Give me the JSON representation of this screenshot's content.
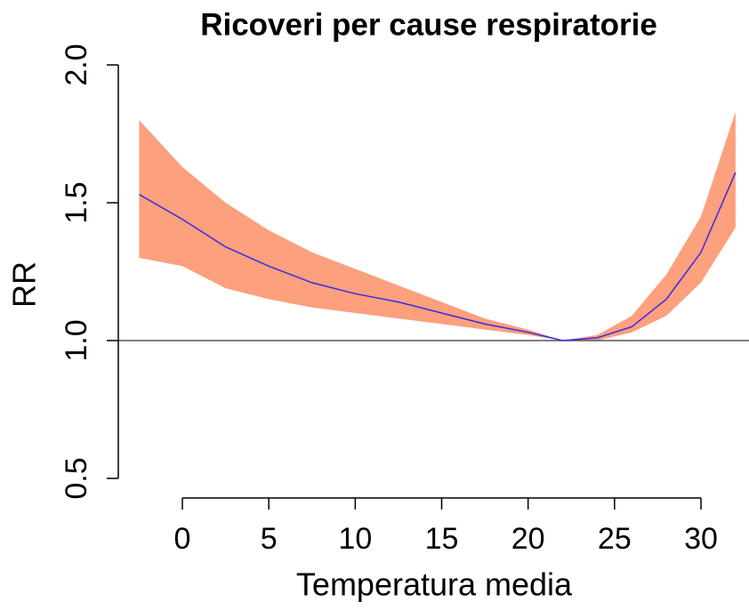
{
  "chart_data": {
    "type": "ribbon",
    "title": "Ricoveri per cause respiratorie",
    "x_label": "Temperatura media",
    "y_label": "RR",
    "x": [
      -2.5,
      0,
      2.5,
      5,
      7.5,
      10,
      12.5,
      15,
      17.5,
      20,
      22,
      24,
      26,
      28,
      30,
      32
    ],
    "line": {
      "color": "#3a2be0",
      "values": [
        1.53,
        1.44,
        1.34,
        1.27,
        1.21,
        1.17,
        1.14,
        1.1,
        1.06,
        1.03,
        1.0,
        1.01,
        1.05,
        1.15,
        1.32,
        1.61
      ]
    },
    "band": {
      "color": "#fca07e",
      "upper": [
        1.8,
        1.63,
        1.5,
        1.4,
        1.32,
        1.26,
        1.2,
        1.14,
        1.08,
        1.04,
        1.0,
        1.02,
        1.09,
        1.24,
        1.45,
        1.83
      ],
      "lower": [
        1.3,
        1.27,
        1.19,
        1.15,
        1.12,
        1.1,
        1.08,
        1.06,
        1.04,
        1.02,
        1.0,
        1.0,
        1.03,
        1.09,
        1.21,
        1.41
      ]
    },
    "hline": 1,
    "xlim": [
      0,
      30
    ],
    "xticks": [
      0,
      5,
      10,
      15,
      20,
      25,
      30
    ],
    "ylim": [
      0.5,
      2
    ],
    "yticks": [
      0.5,
      {
        "value": 1,
        "label": "1.0"
      },
      1.5,
      {
        "value": 2,
        "label": "2.0"
      }
    ]
  }
}
